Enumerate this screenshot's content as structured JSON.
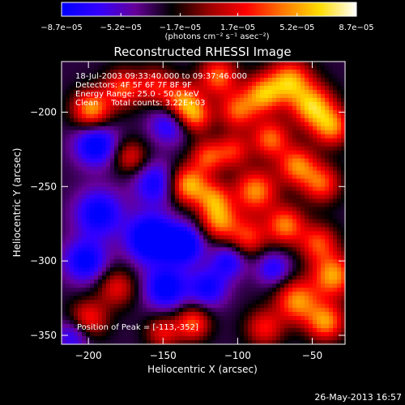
{
  "chart_data": {
    "type": "heatmap",
    "title": "Reconstructed RHESSI Image",
    "xlabel": "Heliocentric X (arcsec)",
    "ylabel": "Heliocentric Y (arcsec)",
    "xlim": [
      -218,
      -28
    ],
    "ylim": [
      -356,
      -166
    ],
    "x_ticks": [
      -200,
      -150,
      -100,
      -50
    ],
    "x_tick_labels": [
      "−200",
      "−150",
      "−100",
      "−50"
    ],
    "y_ticks": [
      -200,
      -250,
      -300,
      -350
    ],
    "y_tick_labels": [
      "−200",
      "−250",
      "−300",
      "−350"
    ],
    "colorbar": {
      "min": -8.7e-05,
      "max": 8.7e-05,
      "tick_values": [
        -8.7e-05,
        -5.2e-05,
        -1.7e-05,
        1.7e-05,
        5.2e-05,
        8.7e-05
      ],
      "tick_labels": [
        "−8.7e−05",
        "−5.2e−05",
        "−1.7e−05",
        "1.7e−05",
        "5.2e−05",
        "8.7e−05"
      ],
      "units_label": "(photons cm⁻² s⁻¹ asec⁻²)",
      "stops": [
        "#0000ff",
        "#3300ff",
        "#660099",
        "#000000",
        "#990000",
        "#ff0000",
        "#ff7700",
        "#ffdd00",
        "#ffffff"
      ]
    },
    "annotations": [
      "18-Jul-2003 09:33:40.000 to 09:37:46.000",
      "Detectors: 4F 5F 6F 7F 8F 9F",
      "Energy Range: 25.0 - 50.0 keV",
      "Clean     Total counts: 3.22E+03"
    ],
    "peak_label": "Position of Peak = [-113,-352]",
    "blobs": [
      {
        "x": -198,
        "y": -198,
        "v": 0.95,
        "s": 9
      },
      {
        "x": -177,
        "y": -184,
        "v": 0.7,
        "s": 9
      },
      {
        "x": -155,
        "y": -182,
        "v": 0.55,
        "s": 9
      },
      {
        "x": -137,
        "y": -193,
        "v": 0.85,
        "s": 9
      },
      {
        "x": -128,
        "y": -203,
        "v": 0.7,
        "s": 8
      },
      {
        "x": -113,
        "y": -176,
        "v": 0.8,
        "s": 9
      },
      {
        "x": -100,
        "y": -199,
        "v": 0.75,
        "s": 9
      },
      {
        "x": -83,
        "y": -188,
        "v": 0.9,
        "s": 9
      },
      {
        "x": -65,
        "y": -179,
        "v": 0.95,
        "s": 10
      },
      {
        "x": -50,
        "y": -196,
        "v": 1.0,
        "s": 10
      },
      {
        "x": -37,
        "y": -210,
        "v": 0.85,
        "s": 9
      },
      {
        "x": -78,
        "y": -218,
        "v": 0.8,
        "s": 9
      },
      {
        "x": -172,
        "y": -230,
        "v": 0.55,
        "s": 8
      },
      {
        "x": -120,
        "y": -230,
        "v": 0.7,
        "s": 8
      },
      {
        "x": -103,
        "y": -226,
        "v": 0.6,
        "s": 8
      },
      {
        "x": -60,
        "y": -236,
        "v": 0.85,
        "s": 9
      },
      {
        "x": -44,
        "y": -248,
        "v": 0.75,
        "s": 9
      },
      {
        "x": -133,
        "y": -249,
        "v": 1.0,
        "s": 9
      },
      {
        "x": -116,
        "y": -258,
        "v": 0.7,
        "s": 8
      },
      {
        "x": -88,
        "y": -253,
        "v": 0.9,
        "s": 10
      },
      {
        "x": -112,
        "y": -273,
        "v": 0.85,
        "s": 9
      },
      {
        "x": -93,
        "y": -284,
        "v": 0.65,
        "s": 9
      },
      {
        "x": -68,
        "y": -276,
        "v": 0.85,
        "s": 9
      },
      {
        "x": -46,
        "y": -288,
        "v": 0.7,
        "s": 9
      },
      {
        "x": -36,
        "y": -310,
        "v": 0.95,
        "s": 10
      },
      {
        "x": -60,
        "y": -327,
        "v": 0.9,
        "s": 10
      },
      {
        "x": -41,
        "y": -341,
        "v": 0.9,
        "s": 9
      },
      {
        "x": -82,
        "y": -345,
        "v": 0.6,
        "s": 9
      },
      {
        "x": -130,
        "y": -342,
        "v": 0.75,
        "s": 8
      },
      {
        "x": -150,
        "y": -348,
        "v": 0.55,
        "s": 8
      },
      {
        "x": -181,
        "y": -318,
        "v": 0.55,
        "s": 9
      },
      {
        "x": -200,
        "y": -339,
        "v": 0.65,
        "s": 9
      },
      {
        "x": -195,
        "y": -222,
        "v": -0.75,
        "s": 10
      },
      {
        "x": -146,
        "y": -208,
        "v": -0.55,
        "s": 9
      },
      {
        "x": -155,
        "y": -248,
        "v": -0.6,
        "s": 10
      },
      {
        "x": -193,
        "y": -268,
        "v": -0.7,
        "s": 11
      },
      {
        "x": -158,
        "y": -285,
        "v": -1.0,
        "s": 11
      },
      {
        "x": -136,
        "y": -289,
        "v": -0.85,
        "s": 9
      },
      {
        "x": -202,
        "y": -300,
        "v": -0.7,
        "s": 10
      },
      {
        "x": -148,
        "y": -318,
        "v": -0.75,
        "s": 10
      },
      {
        "x": -120,
        "y": -318,
        "v": -0.6,
        "s": 9
      },
      {
        "x": -106,
        "y": -300,
        "v": -0.55,
        "s": 8
      },
      {
        "x": -76,
        "y": -305,
        "v": -0.5,
        "s": 8
      },
      {
        "x": -210,
        "y": -350,
        "v": -0.5,
        "s": 8
      }
    ]
  },
  "footer": {
    "timestamp": "26-May-2013 16:57"
  }
}
